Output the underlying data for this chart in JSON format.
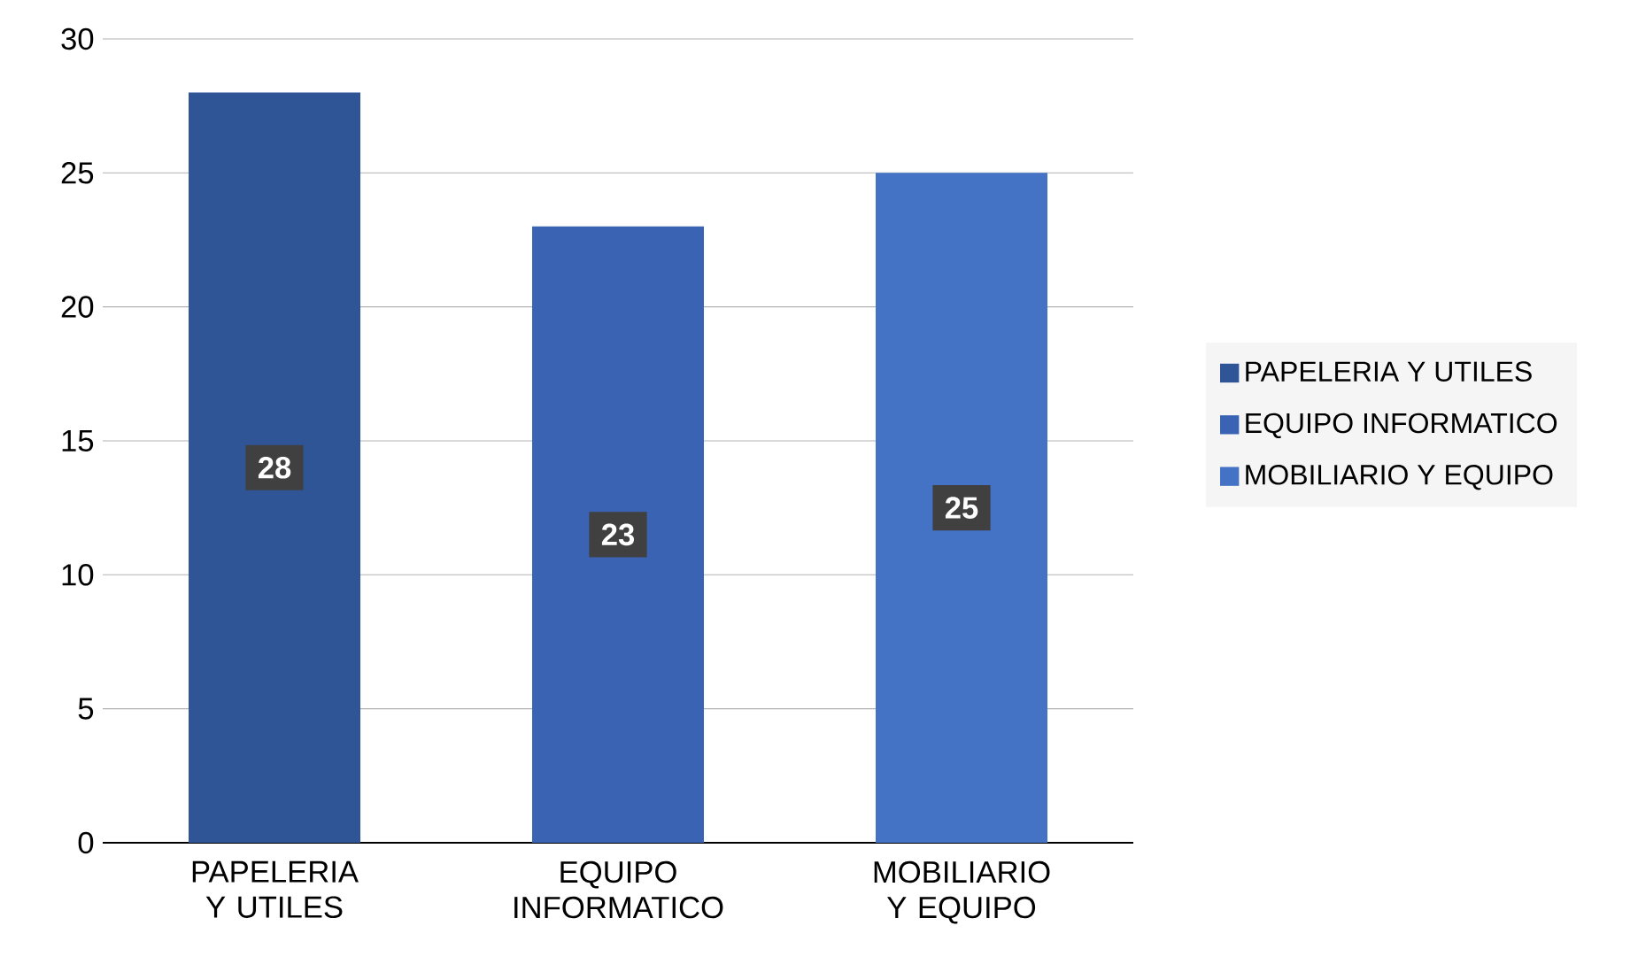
{
  "chart_data": {
    "type": "bar",
    "categories": [
      "PAPELERIA Y UTILES",
      "EQUIPO INFORMATICO",
      "MOBILIARIO Y EQUIPO"
    ],
    "series": [
      {
        "name": "PAPELERIA Y UTILES",
        "color": "#2f5597",
        "values": [
          28,
          null,
          null
        ]
      },
      {
        "name": "EQUIPO INFORMATICO",
        "color": "#3a63b4",
        "values": [
          null,
          23,
          null
        ]
      },
      {
        "name": "MOBILIARIO Y EQUIPO",
        "color": "#4472c4",
        "values": [
          null,
          null,
          25
        ]
      }
    ],
    "ylim": [
      0,
      30
    ],
    "yticks": [
      0,
      5,
      10,
      15,
      20,
      25,
      30
    ],
    "grid": "y",
    "legend": "right",
    "data_labels": true
  }
}
